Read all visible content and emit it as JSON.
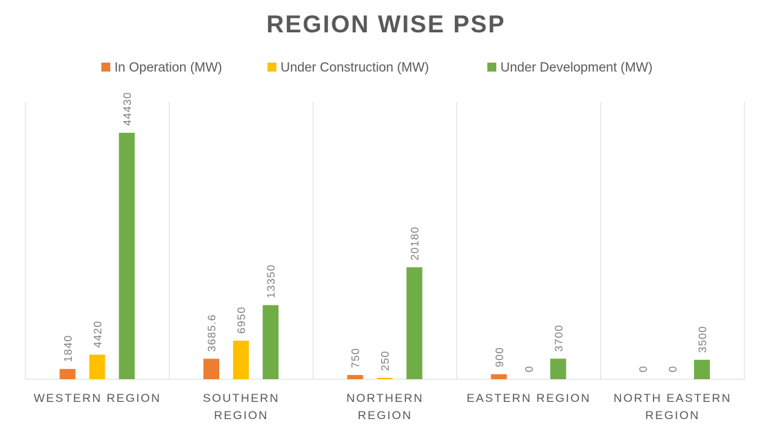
{
  "chart_data": {
    "type": "bar",
    "title": "REGION WISE PSP",
    "categories": [
      [
        "WESTERN REGION"
      ],
      [
        "SOUTHERN",
        "REGION"
      ],
      [
        "NORTHERN",
        "REGION"
      ],
      [
        "EASTERN REGION"
      ],
      [
        "NORTH EASTERN",
        "REGION"
      ]
    ],
    "series": [
      {
        "name": "In Operation (MW)",
        "color": "#ED7D31",
        "values": [
          1840,
          3685.6,
          750,
          900,
          0
        ]
      },
      {
        "name": "Under Construction (MW)",
        "color": "#FFC000",
        "values": [
          4420,
          6950,
          250,
          0,
          0
        ]
      },
      {
        "name": "Under Development (MW)",
        "color": "#70AD47",
        "values": [
          44430,
          13350,
          20180,
          3700,
          3500
        ]
      }
    ],
    "ylim": [
      0,
      50000
    ],
    "grid": "vertical category separators",
    "legend": "top",
    "data_labels": true
  }
}
